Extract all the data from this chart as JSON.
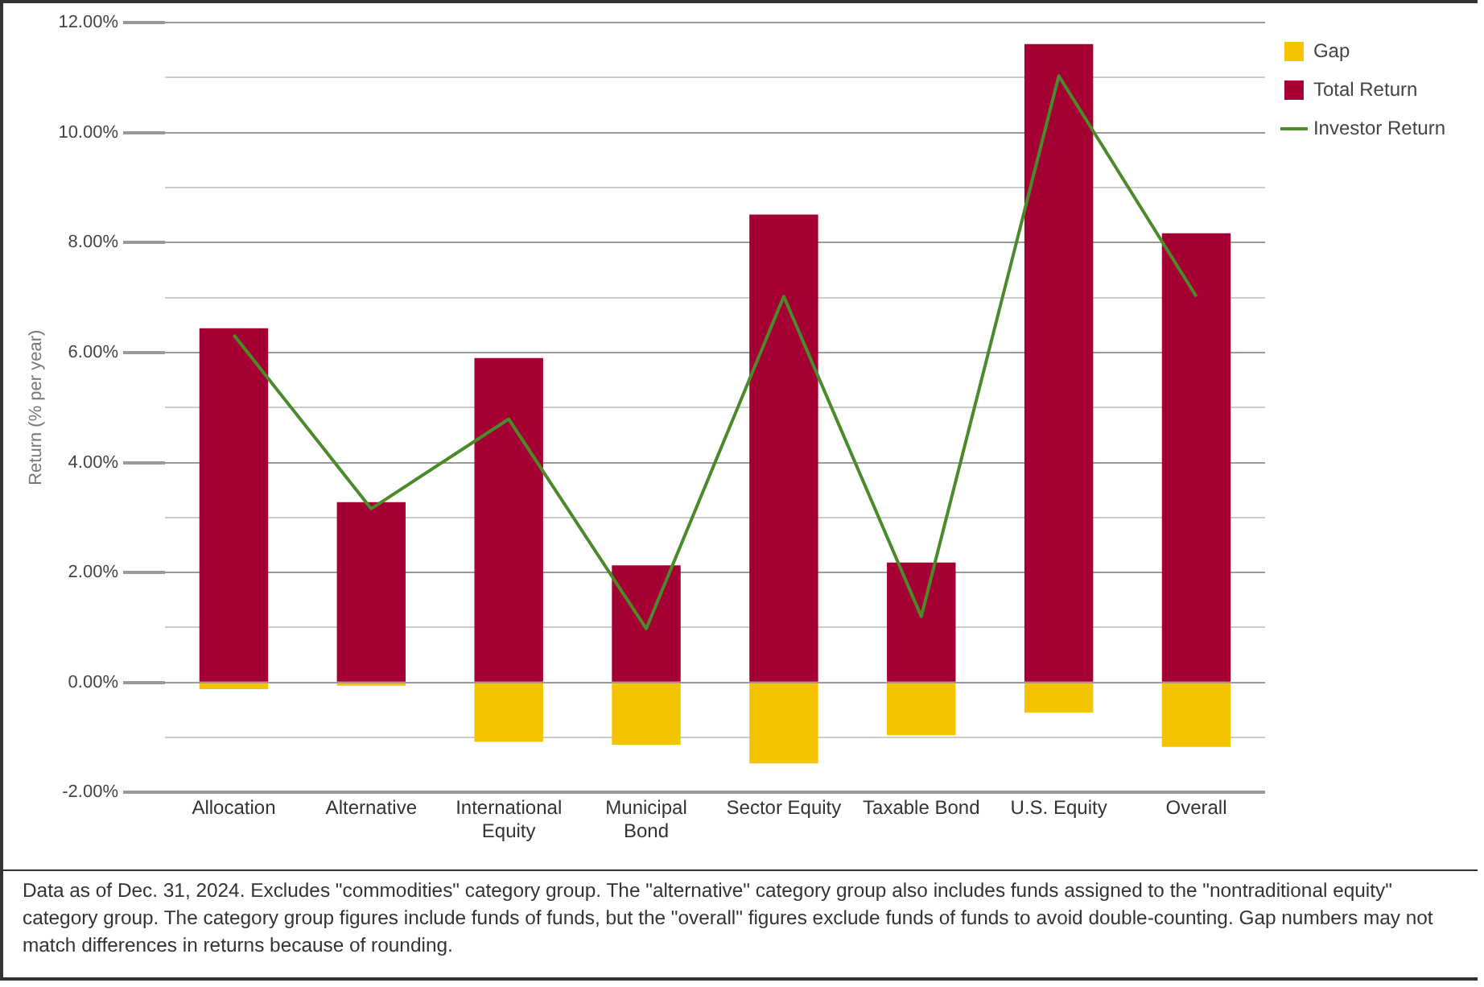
{
  "chart_data": {
    "type": "bar",
    "stacked": true,
    "ylabel": "Return (% per year)",
    "categories": [
      "Allocation",
      "Alternative",
      "International\nEquity",
      "Municipal\nBond",
      "Sector Equity",
      "Taxable Bond",
      "U.S. Equity",
      "Overall"
    ],
    "series": [
      {
        "name": "Gap",
        "color": "#f5c400",
        "values": [
          -0.12,
          -0.06,
          -1.08,
          -1.13,
          -1.47,
          -0.96,
          -0.55,
          -1.17
        ]
      },
      {
        "name": "Total Return",
        "color": "#a50034",
        "values": [
          6.44,
          3.28,
          5.9,
          2.13,
          8.51,
          2.18,
          11.61,
          8.17
        ]
      },
      {
        "name": "Investor Return",
        "type": "line",
        "color": "#4a8a2a",
        "values": [
          6.32,
          3.16,
          4.79,
          0.98,
          7.02,
          1.2,
          11.03,
          7.02
        ]
      }
    ],
    "ylim": [
      -2,
      12
    ],
    "yticks": [
      {
        "value": -2,
        "label": "-2.00%"
      },
      {
        "value": -1,
        "label": null
      },
      {
        "value": 0,
        "label": "0.00%"
      },
      {
        "value": 1,
        "label": null
      },
      {
        "value": 2,
        "label": "2.00%"
      },
      {
        "value": 3,
        "label": null
      },
      {
        "value": 4,
        "label": "4.00%"
      },
      {
        "value": 5,
        "label": null
      },
      {
        "value": 6,
        "label": "6.00%"
      },
      {
        "value": 7,
        "label": null
      },
      {
        "value": 8,
        "label": "8.00%"
      },
      {
        "value": 9,
        "label": null
      },
      {
        "value": 10,
        "label": "10.00%"
      },
      {
        "value": 11,
        "label": null
      },
      {
        "value": 12,
        "label": "12.00%"
      }
    ],
    "grid": "y",
    "legend": "top right",
    "marker": "none",
    "line_style": "solid",
    "annotations": [
      "Data as of Dec. 31, 2024. Excludes \"commodities\" category group. The \"alternative\" category group also includes funds assigned to the \"nontraditional equity\" category group. The category group figures include funds of funds, but the \"overall\" figures exclude funds of funds to avoid double-counting. Gap numbers may not match differences in returns because of rounding."
    ]
  }
}
